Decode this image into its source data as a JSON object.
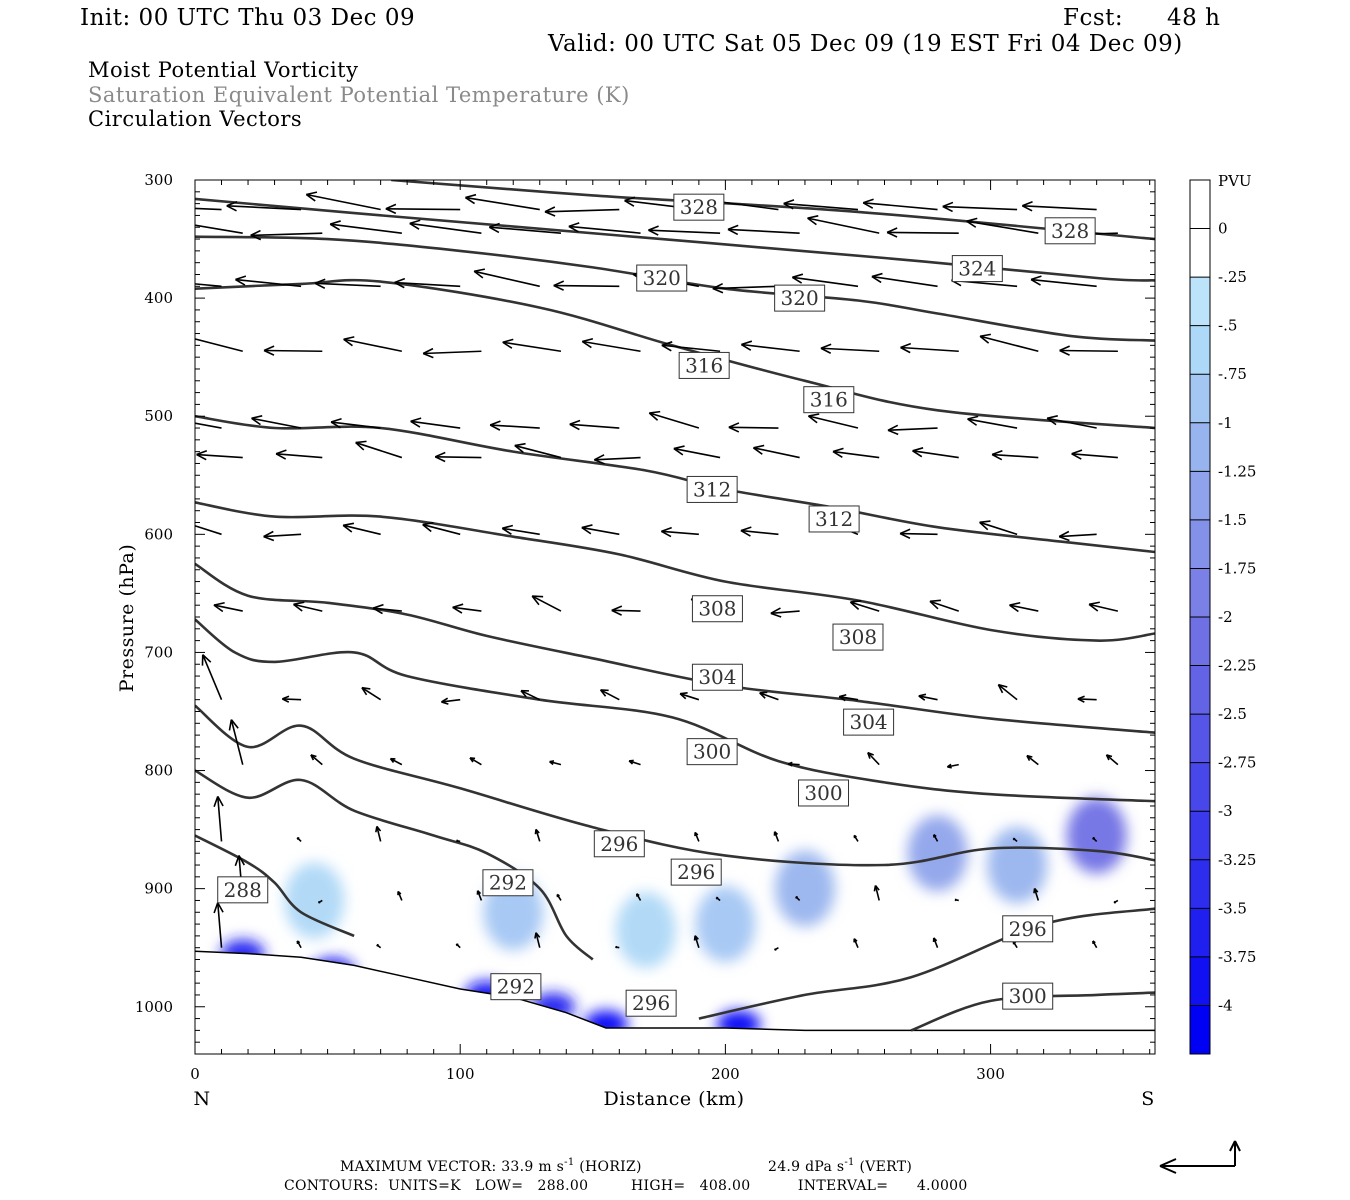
{
  "header": {
    "init": "Init: 00 UTC Thu 03 Dec 09",
    "fcst_label": "Fcst:",
    "fcst_value": "48 h",
    "valid": "Valid: 00 UTC Sat 05 Dec 09 (19 EST Fri 04 Dec 09)"
  },
  "titles": {
    "line1": "Moist Potential Vorticity",
    "line2": "Saturation Equivalent Potential Temperature (K)",
    "line3": "Circulation Vectors",
    "line2_color": "#888888"
  },
  "axes": {
    "ylabel": "Pressure (hPa)",
    "xlabel": "Distance (km)",
    "left_end": "N",
    "right_end": "S"
  },
  "colorbar": {
    "unit": "PVU",
    "ticks": [
      "0",
      "-.25",
      "-.5",
      "-.75",
      "-1",
      "-1.25",
      "-1.5",
      "-1.75",
      "-2",
      "-2.25",
      "-2.5",
      "-2.75",
      "-3",
      "-3.25",
      "-3.5",
      "-3.75",
      "-4"
    ],
    "colors": [
      "#ffffff",
      "#ffffff",
      "#bde3fb",
      "#aed8f7",
      "#a3c6f3",
      "#98b4ee",
      "#8ea3eb",
      "#8491e8",
      "#7a80e6",
      "#7070e5",
      "#6363e6",
      "#5555e8",
      "#4848ea",
      "#3a3aec",
      "#2d2dee",
      "#1f1ff0",
      "#1010f2",
      "#0000f5"
    ]
  },
  "footer": {
    "max_vector": "MAXIMUM VECTOR:  33.9 m s",
    "max_vector_sup": "-1",
    "horiz": "(HORIZ)",
    "vert_value": "24.9 dPa s",
    "vert_sup": "-1",
    "vert": "(VERT)",
    "contours": "CONTOURS:  UNITS=K   LOW=   288.00         HIGH=   408.00          INTERVAL=      4.0000"
  },
  "chart_data": {
    "type": "contour",
    "title": "Moist Potential Vorticity / Saturation Equivalent Potential Temperature (K) / Circulation Vectors",
    "xlabel": "Distance (km)",
    "ylabel": "Pressure (hPa)",
    "xlim": [
      0,
      362
    ],
    "ylim": [
      1040,
      300
    ],
    "xticks": [
      0,
      100,
      200,
      300
    ],
    "yticks": [
      300,
      400,
      500,
      600,
      700,
      800,
      900,
      1000
    ],
    "contour_labels": [
      {
        "value": "328",
        "x": 190,
        "p": 323
      },
      {
        "value": "328",
        "x": 330,
        "p": 343
      },
      {
        "value": "324",
        "x": 295,
        "p": 375
      },
      {
        "value": "320",
        "x": 176,
        "p": 383
      },
      {
        "value": "320",
        "x": 228,
        "p": 400
      },
      {
        "value": "316",
        "x": 192,
        "p": 457
      },
      {
        "value": "316",
        "x": 239,
        "p": 486
      },
      {
        "value": "312",
        "x": 195,
        "p": 562
      },
      {
        "value": "312",
        "x": 241,
        "p": 587
      },
      {
        "value": "308",
        "x": 197,
        "p": 663
      },
      {
        "value": "308",
        "x": 250,
        "p": 687
      },
      {
        "value": "304",
        "x": 197,
        "p": 721
      },
      {
        "value": "304",
        "x": 254,
        "p": 759
      },
      {
        "value": "300",
        "x": 195,
        "p": 784
      },
      {
        "value": "300",
        "x": 237,
        "p": 819
      },
      {
        "value": "296",
        "x": 160,
        "p": 862
      },
      {
        "value": "296",
        "x": 189,
        "p": 886
      },
      {
        "value": "296",
        "x": 314,
        "p": 934
      },
      {
        "value": "300",
        "x": 314,
        "p": 991
      },
      {
        "value": "292",
        "x": 118,
        "p": 895
      },
      {
        "value": "292",
        "x": 121,
        "p": 983
      },
      {
        "value": "296",
        "x": 172,
        "p": 997
      },
      {
        "value": "288",
        "x": 18,
        "p": 901
      }
    ],
    "theta_es_contours": [
      {
        "value": 328,
        "points": [
          [
            74,
            300
          ],
          [
            150,
            313
          ],
          [
            250,
            327
          ],
          [
            362,
            350
          ]
        ]
      },
      {
        "value": 324,
        "points": [
          [
            0,
            316
          ],
          [
            60,
            328
          ],
          [
            160,
            347
          ],
          [
            260,
            366
          ],
          [
            340,
            383
          ],
          [
            362,
            385
          ]
        ]
      },
      {
        "value": 320,
        "points": [
          [
            0,
            348
          ],
          [
            50,
            350
          ],
          [
            100,
            360
          ],
          [
            150,
            374
          ],
          [
            200,
            392
          ],
          [
            250,
            402
          ],
          [
            280,
            413
          ],
          [
            330,
            432
          ],
          [
            362,
            436
          ]
        ]
      },
      {
        "value": 316,
        "points": [
          [
            0,
            392
          ],
          [
            40,
            388
          ],
          [
            70,
            386
          ],
          [
            130,
            408
          ],
          [
            180,
            440
          ],
          [
            230,
            470
          ],
          [
            280,
            495
          ],
          [
            362,
            510
          ]
        ]
      },
      {
        "value": 312,
        "points": [
          [
            0,
            500
          ],
          [
            30,
            510
          ],
          [
            70,
            510
          ],
          [
            120,
            530
          ],
          [
            170,
            546
          ],
          [
            200,
            562
          ],
          [
            240,
            577
          ],
          [
            280,
            594
          ],
          [
            330,
            607
          ],
          [
            362,
            615
          ]
        ]
      },
      {
        "value": 308,
        "points": [
          [
            0,
            573
          ],
          [
            30,
            585
          ],
          [
            70,
            585
          ],
          [
            120,
            602
          ],
          [
            160,
            617
          ],
          [
            200,
            640
          ],
          [
            250,
            656
          ],
          [
            300,
            681
          ],
          [
            340,
            690
          ],
          [
            362,
            684
          ]
        ]
      },
      {
        "value": 304,
        "points": [
          [
            0,
            625
          ],
          [
            20,
            652
          ],
          [
            50,
            658
          ],
          [
            80,
            668
          ],
          [
            110,
            686
          ],
          [
            150,
            705
          ],
          [
            200,
            728
          ],
          [
            250,
            741
          ],
          [
            300,
            756
          ],
          [
            362,
            768
          ]
        ]
      },
      {
        "value": 300,
        "points": [
          [
            0,
            672
          ],
          [
            15,
            700
          ],
          [
            30,
            708
          ],
          [
            60,
            700
          ],
          [
            80,
            720
          ],
          [
            130,
            740
          ],
          [
            180,
            755
          ],
          [
            220,
            792
          ],
          [
            260,
            810
          ],
          [
            300,
            820
          ],
          [
            362,
            826
          ]
        ]
      },
      {
        "value": 296,
        "points": [
          [
            0,
            745
          ],
          [
            20,
            780
          ],
          [
            40,
            762
          ],
          [
            60,
            790
          ],
          [
            100,
            815
          ],
          [
            150,
            848
          ],
          [
            200,
            872
          ],
          [
            260,
            880
          ],
          [
            300,
            866
          ],
          [
            340,
            868
          ],
          [
            362,
            876
          ]
        ]
      },
      {
        "value": 292,
        "points": [
          [
            0,
            800
          ],
          [
            20,
            823
          ],
          [
            40,
            808
          ],
          [
            60,
            834
          ],
          [
            90,
            855
          ],
          [
            110,
            870
          ],
          [
            130,
            900
          ],
          [
            140,
            940
          ],
          [
            150,
            960
          ]
        ]
      },
      {
        "value": 288,
        "points": [
          [
            0,
            855
          ],
          [
            20,
            878
          ],
          [
            30,
            895
          ],
          [
            40,
            920
          ],
          [
            60,
            940
          ]
        ]
      },
      {
        "value": 296,
        "points": [
          [
            190,
            1010
          ],
          [
            230,
            990
          ],
          [
            270,
            975
          ],
          [
            320,
            930
          ],
          [
            362,
            917
          ]
        ]
      },
      {
        "value": 300,
        "points": [
          [
            270,
            1020
          ],
          [
            300,
            995
          ],
          [
            340,
            990
          ],
          [
            362,
            988
          ]
        ]
      }
    ],
    "mpv_shading": [
      {
        "x": 45,
        "p": 910,
        "level": -0.5
      },
      {
        "x": 120,
        "p": 920,
        "level": -0.75
      },
      {
        "x": 170,
        "p": 935,
        "level": -0.5
      },
      {
        "x": 200,
        "p": 930,
        "level": -0.75
      },
      {
        "x": 230,
        "p": 900,
        "level": -1.0
      },
      {
        "x": 280,
        "p": 870,
        "level": -1.25
      },
      {
        "x": 310,
        "p": 880,
        "level": -1.0
      },
      {
        "x": 340,
        "p": 855,
        "level": -2.0
      },
      {
        "x": 18,
        "p": 955,
        "level": -3.5
      },
      {
        "x": 52,
        "p": 970,
        "level": -3.5
      },
      {
        "x": 110,
        "p": 990,
        "level": -3.75
      },
      {
        "x": 135,
        "p": 1000,
        "level": -3.5
      },
      {
        "x": 155,
        "p": 1015,
        "level": -4.0
      },
      {
        "x": 205,
        "p": 1015,
        "level": -4.0
      }
    ],
    "circulation_vectors": [
      {
        "x": 10,
        "p": 330,
        "u": -1.0,
        "w": 0.0
      },
      {
        "x": 60,
        "p": 330,
        "u": -0.9,
        "w": 0.1
      },
      {
        "x": 150,
        "p": 340,
        "u": -0.9,
        "w": 0.0
      },
      {
        "x": 250,
        "p": 352,
        "u": -0.8,
        "w": 0.0
      },
      {
        "x": 340,
        "p": 348,
        "u": -0.8,
        "w": 0.0
      },
      {
        "x": 30,
        "p": 455,
        "u": -0.7,
        "w": 0.1
      },
      {
        "x": 180,
        "p": 460,
        "u": -0.6,
        "w": 0.0
      },
      {
        "x": 300,
        "p": 460,
        "u": -0.8,
        "w": 0.0
      },
      {
        "x": 30,
        "p": 590,
        "u": -0.8,
        "w": 0.2
      },
      {
        "x": 200,
        "p": 605,
        "u": -0.4,
        "w": 0.0
      },
      {
        "x": 20,
        "p": 750,
        "u": -0.3,
        "w": 0.5
      },
      {
        "x": 200,
        "p": 780,
        "u": -0.1,
        "w": 0.0
      }
    ],
    "grid": false,
    "legend": "right colorbar"
  }
}
